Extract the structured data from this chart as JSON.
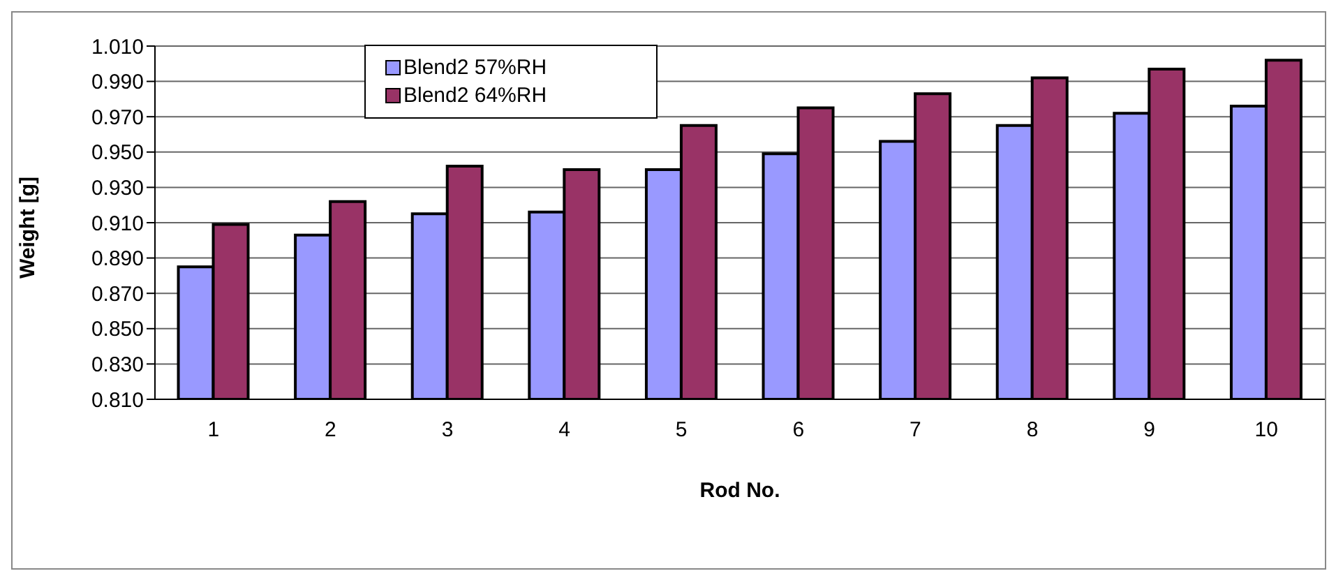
{
  "chart_data": {
    "type": "bar",
    "xlabel": "Rod No.",
    "ylabel": "Weight [g]",
    "categories": [
      "1",
      "2",
      "3",
      "4",
      "5",
      "6",
      "7",
      "8",
      "9",
      "10"
    ],
    "series": [
      {
        "name": "Blend2 57%RH",
        "color": "#9999ff",
        "values": [
          0.885,
          0.903,
          0.915,
          0.916,
          0.94,
          0.949,
          0.956,
          0.965,
          0.972,
          0.976
        ]
      },
      {
        "name": "Blend2 64%RH",
        "color": "#993366",
        "values": [
          0.909,
          0.922,
          0.942,
          0.94,
          0.965,
          0.975,
          0.983,
          0.992,
          0.997,
          1.002
        ]
      }
    ],
    "ylim": [
      0.81,
      1.01
    ],
    "yticks": [
      {
        "value": 0.81,
        "label": "0.810"
      },
      {
        "value": 0.83,
        "label": "0.830"
      },
      {
        "value": 0.85,
        "label": "0.850"
      },
      {
        "value": 0.87,
        "label": "0.870"
      },
      {
        "value": 0.89,
        "label": "0.890"
      },
      {
        "value": 0.91,
        "label": "0.910"
      },
      {
        "value": 0.93,
        "label": "0.930"
      },
      {
        "value": 0.95,
        "label": "0.950"
      },
      {
        "value": 0.97,
        "label": "0.970"
      },
      {
        "value": 0.99,
        "label": "0.990"
      },
      {
        "value": 1.01,
        "label": "1.010"
      }
    ],
    "grid": "y",
    "legend": "top"
  }
}
